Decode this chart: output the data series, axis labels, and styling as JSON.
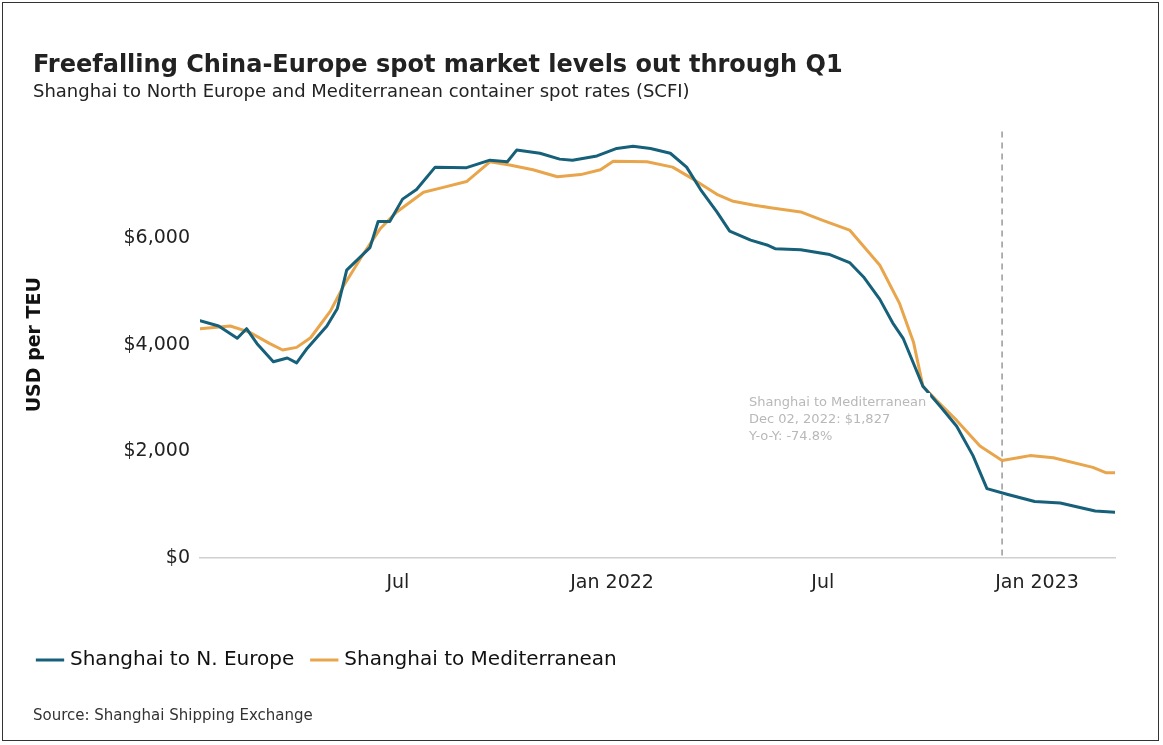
{
  "chart_data": {
    "type": "line",
    "title": "Freefalling China-Europe spot market levels out through Q1",
    "subtitle": "Shanghai to North Europe and Mediterranean container spot rates (SCFI)",
    "ylabel": "USD per TEU",
    "xlim": [
      "2021-01-12",
      "2023-03-09"
    ],
    "xticks": [
      {
        "value": "2021-07-01",
        "label": "Jul"
      },
      {
        "value": "2022-01-01",
        "label": "Jan 2022"
      },
      {
        "value": "2022-07-01",
        "label": "Jul"
      },
      {
        "value": "2023-01-01",
        "label": "Jan 2023"
      }
    ],
    "ylim": [
      0,
      8000
    ],
    "yticks": [
      {
        "value": 0,
        "label": "$0"
      },
      {
        "value": 2000,
        "label": "$2,000"
      },
      {
        "value": 4000,
        "label": "$4,000"
      },
      {
        "value": 6000,
        "label": "$6,000"
      }
    ],
    "grid": false,
    "legend": "bottom",
    "marker": "none",
    "line_style": "solid",
    "series": [
      {
        "name": "Shanghai to N. Europe",
        "color": "#17607a",
        "x": [
          "2021-01-12",
          "2021-01-28",
          "2021-02-13",
          "2021-02-21",
          "2021-03-02",
          "2021-03-16",
          "2021-03-28",
          "2021-04-05",
          "2021-04-14",
          "2021-05-01",
          "2021-05-10",
          "2021-05-18",
          "2021-06-07",
          "2021-06-14",
          "2021-06-24",
          "2021-07-05",
          "2021-07-17",
          "2021-08-02",
          "2021-08-29",
          "2021-09-18",
          "2021-10-03",
          "2021-10-11",
          "2021-10-31",
          "2021-11-17",
          "2021-11-28",
          "2021-12-19",
          "2022-01-05",
          "2022-01-19",
          "2022-02-03",
          "2022-02-20",
          "2022-03-06",
          "2022-03-18",
          "2022-04-01",
          "2022-04-12",
          "2022-04-30",
          "2022-05-14",
          "2022-05-21",
          "2022-06-12",
          "2022-07-07",
          "2022-07-24",
          "2022-08-05",
          "2022-08-19",
          "2022-08-30",
          "2022-09-08",
          "2022-09-25",
          "2022-10-10",
          "2022-10-24",
          "2022-11-07",
          "2022-11-19",
          "2022-12-07",
          "2022-12-30",
          "2023-01-21",
          "2023-02-20",
          "2023-03-09"
        ],
        "values": [
          4450,
          4350,
          4120,
          4300,
          4020,
          3680,
          3750,
          3660,
          3930,
          4350,
          4680,
          5400,
          5820,
          6310,
          6310,
          6730,
          6910,
          7330,
          7320,
          7460,
          7430,
          7650,
          7590,
          7480,
          7460,
          7540,
          7680,
          7720,
          7680,
          7590,
          7330,
          6910,
          6490,
          6130,
          5960,
          5870,
          5800,
          5780,
          5690,
          5540,
          5270,
          4850,
          4410,
          4120,
          3220,
          2840,
          2470,
          1920,
          1300,
          1190,
          1060,
          1030,
          880,
          860
        ]
      },
      {
        "name": "Shanghai to Mediterranean",
        "color": "#e8a54b",
        "x": [
          "2021-01-12",
          "2021-02-07",
          "2021-02-24",
          "2021-03-13",
          "2021-03-24",
          "2021-04-05",
          "2021-04-17",
          "2021-05-04",
          "2021-05-15",
          "2021-06-01",
          "2021-06-16",
          "2021-06-30",
          "2021-07-23",
          "2021-08-09",
          "2021-08-29",
          "2021-09-18",
          "2021-10-05",
          "2021-10-25",
          "2021-11-15",
          "2021-12-05",
          "2021-12-22",
          "2022-01-02",
          "2022-01-31",
          "2022-02-22",
          "2022-03-12",
          "2022-04-01",
          "2022-04-15",
          "2022-05-02",
          "2022-05-17",
          "2022-06-12",
          "2022-07-01",
          "2022-07-24",
          "2022-08-19",
          "2022-09-05",
          "2022-09-17",
          "2022-09-25",
          "2022-10-07",
          "2022-10-24",
          "2022-11-13",
          "2022-12-02",
          "2022-12-26",
          "2023-01-15",
          "2023-02-18",
          "2023-03-01",
          "2023-03-09"
        ],
        "values": [
          4300,
          4350,
          4230,
          4020,
          3900,
          3950,
          4130,
          4630,
          5090,
          5690,
          6180,
          6490,
          6860,
          6950,
          7060,
          7430,
          7370,
          7280,
          7150,
          7190,
          7280,
          7440,
          7430,
          7330,
          7100,
          6820,
          6690,
          6620,
          6570,
          6490,
          6330,
          6150,
          5490,
          4770,
          4040,
          3220,
          2950,
          2580,
          2100,
          1827,
          1920,
          1880,
          1700,
          1600,
          1600
        ]
      }
    ],
    "ref_lines": [
      {
        "axis": "x",
        "value": "2022-12-02",
        "color": "#999999",
        "line_style": "dashed"
      }
    ],
    "annotations": [
      "Shanghai to Mediterranean\nDec 02, 2022: $1,827\nY-o-Y: -74.8%",
      "Source: Shanghai Shipping Exchange"
    ]
  }
}
